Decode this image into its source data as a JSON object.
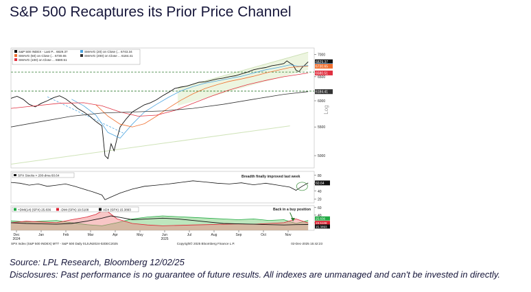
{
  "header": {
    "title": "S&P 500 Recaptures its Prior Price Channel"
  },
  "footer": {
    "source": "Source: LPL Research, Bloomberg 12/02/25",
    "disclosures": "Disclosures: Past performance is no guarantee of future results. All indexes are unmanaged and can't be invested in directly."
  },
  "chart_data": [
    {
      "type": "line",
      "panel": "price",
      "scale": "log",
      "ylabel": "Log",
      "ylim": [
        4800,
        7150
      ],
      "y_ticks": [
        5000,
        5500,
        6000,
        6500,
        7000
      ],
      "x_ticks": [
        "Dec",
        "Jan",
        "Feb",
        "Mar",
        "Apr",
        "May",
        "Jun",
        "Jul",
        "Aug",
        "Sep",
        "Oct",
        "Nov"
      ],
      "x_sublabels": [
        "2024",
        "",
        "",
        "",
        "",
        "",
        "2025",
        "",
        "",
        "",
        "",
        ""
      ],
      "legend": [
        {
          "label": "S&P 500 INDEX - Last P...  6829.37",
          "color": "#111111"
        },
        {
          "label": "SMAVG (50)  on Close (...  6730.65",
          "color": "#f07030"
        },
        {
          "label": "SMAVG (100)  on Close ...  6580.51",
          "color": "#e03040"
        },
        {
          "label": "SMAVG (20)  on Close (...  6743.34",
          "color": "#4aa3df"
        },
        {
          "label": "SMAVG (200)  on Close ...  6184.41",
          "color": "#333333"
        }
      ],
      "value_tags": [
        {
          "value": 6829.37,
          "text": "6829.37",
          "color": "#111111"
        },
        {
          "value": 6743.34,
          "text": "6743.34",
          "color": "#4aa3df"
        },
        {
          "value": 6730.65,
          "text": "6730.65",
          "color": "#f07030"
        },
        {
          "value": 6580.51,
          "text": "6580.51",
          "color": "#e03040"
        },
        {
          "value": 6184.41,
          "text": "6184.41",
          "color": "#333333"
        }
      ],
      "reference_lines": [
        6600,
        6195
      ],
      "series": [
        {
          "name": "S&P 500 INDEX",
          "color": "#111111",
          "points": [
            [
              0,
              6050
            ],
            [
              2,
              6090
            ],
            [
              4,
              6030
            ],
            [
              6,
              5930
            ],
            [
              8,
              5880
            ],
            [
              10,
              5950
            ],
            [
              12,
              6000
            ],
            [
              14,
              6060
            ],
            [
              16,
              6100
            ],
            [
              18,
              6040
            ],
            [
              20,
              5950
            ],
            [
              22,
              5850
            ],
            [
              24,
              5780
            ],
            [
              26,
              5700
            ],
            [
              27,
              5650
            ],
            [
              28,
              5600
            ],
            [
              30,
              5520
            ],
            [
              31,
              5000
            ],
            [
              32,
              4950
            ],
            [
              33,
              5200
            ],
            [
              34,
              5080
            ],
            [
              35,
              5300
            ],
            [
              36,
              5500
            ],
            [
              38,
              5650
            ],
            [
              40,
              5780
            ],
            [
              42,
              5850
            ],
            [
              44,
              5920
            ],
            [
              46,
              5960
            ],
            [
              48,
              6020
            ],
            [
              50,
              6100
            ],
            [
              52,
              6170
            ],
            [
              54,
              6250
            ],
            [
              56,
              6280
            ],
            [
              58,
              6300
            ],
            [
              60,
              6340
            ],
            [
              62,
              6380
            ],
            [
              64,
              6390
            ],
            [
              66,
              6420
            ],
            [
              68,
              6450
            ],
            [
              70,
              6470
            ],
            [
              72,
              6500
            ],
            [
              74,
              6520
            ],
            [
              76,
              6560
            ],
            [
              78,
              6600
            ],
            [
              80,
              6650
            ],
            [
              82,
              6680
            ],
            [
              84,
              6700
            ],
            [
              86,
              6740
            ],
            [
              88,
              6760
            ],
            [
              90,
              6790
            ],
            [
              91,
              6850
            ],
            [
              92,
              6800
            ],
            [
              93,
              6760
            ],
            [
              94,
              6640
            ],
            [
              95,
              6610
            ],
            [
              96,
              6700
            ],
            [
              97,
              6760
            ],
            [
              98,
              6829
            ]
          ]
        },
        {
          "name": "SMAVG (20)",
          "color": "#4aa3df",
          "points": [
            [
              20,
              6030
            ],
            [
              24,
              5900
            ],
            [
              28,
              5720
            ],
            [
              32,
              5400
            ],
            [
              36,
              5300
            ],
            [
              40,
              5550
            ],
            [
              44,
              5780
            ],
            [
              48,
              5930
            ],
            [
              52,
              6070
            ],
            [
              56,
              6200
            ],
            [
              60,
              6290
            ],
            [
              64,
              6360
            ],
            [
              68,
              6410
            ],
            [
              72,
              6460
            ],
            [
              76,
              6510
            ],
            [
              80,
              6580
            ],
            [
              84,
              6650
            ],
            [
              88,
              6700
            ],
            [
              92,
              6760
            ],
            [
              95,
              6730
            ],
            [
              98,
              6743
            ]
          ]
        },
        {
          "name": "SMAVG (50)",
          "color": "#f07030",
          "points": [
            [
              28,
              5920
            ],
            [
              32,
              5700
            ],
            [
              36,
              5550
            ],
            [
              40,
              5500
            ],
            [
              44,
              5560
            ],
            [
              48,
              5700
            ],
            [
              52,
              5860
            ],
            [
              56,
              6010
            ],
            [
              60,
              6140
            ],
            [
              64,
              6250
            ],
            [
              68,
              6330
            ],
            [
              72,
              6400
            ],
            [
              76,
              6450
            ],
            [
              80,
              6510
            ],
            [
              84,
              6580
            ],
            [
              88,
              6640
            ],
            [
              92,
              6700
            ],
            [
              95,
              6720
            ],
            [
              98,
              6730
            ]
          ]
        },
        {
          "name": "SMAVG (100)",
          "color": "#e03040",
          "points": [
            [
              0,
              5850
            ],
            [
              8,
              5900
            ],
            [
              16,
              5950
            ],
            [
              24,
              5960
            ],
            [
              30,
              5900
            ],
            [
              36,
              5780
            ],
            [
              42,
              5700
            ],
            [
              48,
              5720
            ],
            [
              54,
              5810
            ],
            [
              60,
              5950
            ],
            [
              66,
              6090
            ],
            [
              72,
              6220
            ],
            [
              78,
              6330
            ],
            [
              84,
              6420
            ],
            [
              90,
              6500
            ],
            [
              95,
              6550
            ],
            [
              98,
              6580
            ]
          ]
        },
        {
          "name": "SMAVG (200)",
          "color": "#333333",
          "points": [
            [
              0,
              5500
            ],
            [
              10,
              5600
            ],
            [
              20,
              5700
            ],
            [
              30,
              5760
            ],
            [
              40,
              5780
            ],
            [
              50,
              5800
            ],
            [
              60,
              5850
            ],
            [
              70,
              5930
            ],
            [
              80,
              6030
            ],
            [
              90,
              6130
            ],
            [
              98,
              6184
            ]
          ]
        }
      ],
      "annotations": []
    },
    {
      "type": "line",
      "panel": "breadth",
      "legend": [
        {
          "label": "SPX Stocks > 200-dma  60.64",
          "color": "#111111"
        }
      ],
      "y_ticks": [
        20,
        40,
        60,
        80
      ],
      "ylim": [
        10,
        90
      ],
      "value_tags": [
        {
          "value": 60.64,
          "text": "60.64",
          "color": "#111111"
        }
      ],
      "annotations": [
        {
          "text": "Breadth finally improved last week"
        }
      ],
      "series": [
        {
          "name": "SPX Stocks > 200-dma",
          "color": "#111111",
          "points": [
            [
              0,
              62
            ],
            [
              3,
              60
            ],
            [
              6,
              55
            ],
            [
              9,
              58
            ],
            [
              12,
              52
            ],
            [
              15,
              55
            ],
            [
              18,
              58
            ],
            [
              21,
              52
            ],
            [
              24,
              45
            ],
            [
              27,
              38
            ],
            [
              30,
              30
            ],
            [
              31,
              18
            ],
            [
              33,
              25
            ],
            [
              36,
              35
            ],
            [
              40,
              45
            ],
            [
              44,
              52
            ],
            [
              48,
              55
            ],
            [
              52,
              58
            ],
            [
              56,
              62
            ],
            [
              60,
              66
            ],
            [
              64,
              63
            ],
            [
              68,
              60
            ],
            [
              72,
              58
            ],
            [
              76,
              61
            ],
            [
              80,
              56
            ],
            [
              84,
              60
            ],
            [
              88,
              55
            ],
            [
              92,
              50
            ],
            [
              94,
              42
            ],
            [
              96,
              52
            ],
            [
              98,
              60.64
            ]
          ]
        }
      ]
    },
    {
      "type": "area",
      "panel": "dmi",
      "legend": [
        {
          "label": "+DMI(14)  (SPX)  25.836",
          "color": "#22aa44"
        },
        {
          "label": "-DMI (SPX)  19.5108",
          "color": "#dd2233"
        },
        {
          "label": "ADX (SPX)  15.3893",
          "color": "#111111"
        }
      ],
      "y_ticks": [
        20,
        40,
        60
      ],
      "ylim": [
        0,
        65
      ],
      "value_tags": [
        {
          "value": 25.836,
          "text": "25.836",
          "color": "#22aa44"
        },
        {
          "value": 19.5108,
          "text": "19.5108",
          "color": "#dd2233"
        },
        {
          "value": 15.3893,
          "text": "15.3893",
          "color": "#111111"
        }
      ],
      "annotations": [
        {
          "text": "Back in a buy position"
        }
      ],
      "series": [
        {
          "name": "+DMI(14)",
          "color": "#22aa44",
          "points": [
            [
              0,
              25
            ],
            [
              5,
              22
            ],
            [
              10,
              24
            ],
            [
              15,
              26
            ],
            [
              20,
              20
            ],
            [
              25,
              15
            ],
            [
              30,
              12
            ],
            [
              35,
              20
            ],
            [
              40,
              30
            ],
            [
              45,
              35
            ],
            [
              50,
              38
            ],
            [
              55,
              36
            ],
            [
              60,
              34
            ],
            [
              65,
              32
            ],
            [
              70,
              30
            ],
            [
              75,
              28
            ],
            [
              80,
              30
            ],
            [
              85,
              26
            ],
            [
              90,
              28
            ],
            [
              94,
              18
            ],
            [
              98,
              25.8
            ]
          ]
        },
        {
          "name": "-DMI",
          "color": "#dd2233",
          "points": [
            [
              0,
              20
            ],
            [
              5,
              24
            ],
            [
              10,
              22
            ],
            [
              15,
              20
            ],
            [
              20,
              28
            ],
            [
              25,
              35
            ],
            [
              28,
              42
            ],
            [
              31,
              55
            ],
            [
              35,
              30
            ],
            [
              40,
              18
            ],
            [
              45,
              14
            ],
            [
              50,
              12
            ],
            [
              55,
              13
            ],
            [
              60,
              14
            ],
            [
              65,
              15
            ],
            [
              70,
              16
            ],
            [
              75,
              17
            ],
            [
              80,
              16
            ],
            [
              85,
              18
            ],
            [
              90,
              20
            ],
            [
              94,
              30
            ],
            [
              98,
              19.5
            ]
          ]
        },
        {
          "name": "ADX",
          "color": "#111111",
          "points": [
            [
              0,
              20
            ],
            [
              5,
              18
            ],
            [
              10,
              17
            ],
            [
              15,
              16
            ],
            [
              20,
              18
            ],
            [
              25,
              24
            ],
            [
              30,
              32
            ],
            [
              33,
              38
            ],
            [
              36,
              34
            ],
            [
              40,
              28
            ],
            [
              45,
              30
            ],
            [
              50,
              32
            ],
            [
              55,
              30
            ],
            [
              60,
              26
            ],
            [
              65,
              22
            ],
            [
              70,
              18
            ],
            [
              75,
              17
            ],
            [
              80,
              16
            ],
            [
              85,
              15
            ],
            [
              90,
              14
            ],
            [
              94,
              15
            ],
            [
              98,
              15.4
            ]
          ]
        }
      ]
    }
  ],
  "chart_footer": {
    "left": "SPX Index (S&P 500 INDEX) MTT - S&P 500 Daily 01JUN2024-02DEC2025",
    "center": "Copyright© 2025 Bloomberg Finance L.P.",
    "right": "02-Dec-2025 15:42:23"
  }
}
